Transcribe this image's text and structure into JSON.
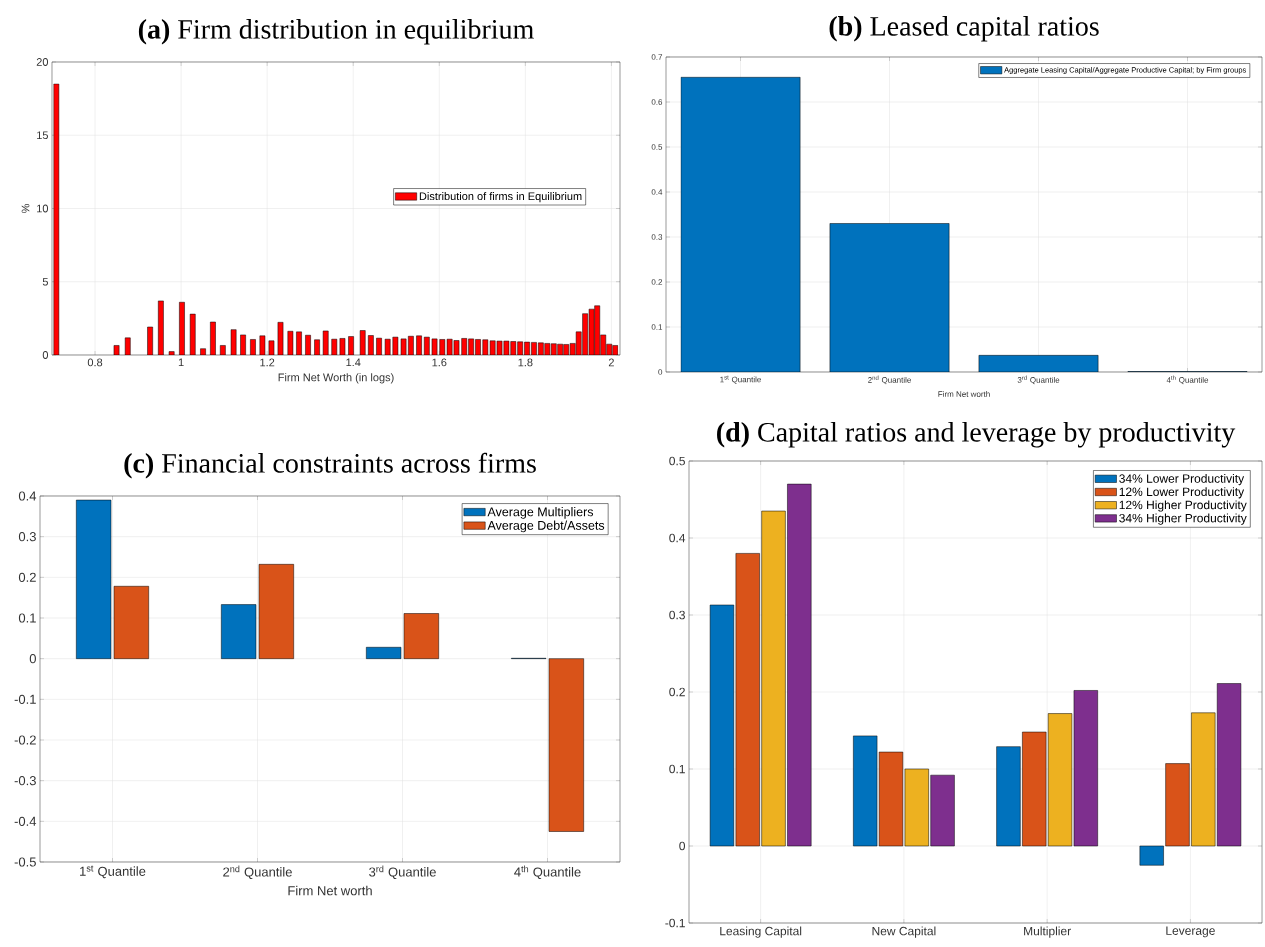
{
  "chart_data": [
    {
      "type": "bar",
      "title": "**(a)** Firm distribution in equilibrium",
      "xlabel": "Firm Net Worth (in logs)",
      "ylabel": "%",
      "x": [
        0.71,
        0.85,
        0.876,
        0.928,
        0.953,
        0.978,
        1.002,
        1.027,
        1.051,
        1.074,
        1.097,
        1.122,
        1.144,
        1.167,
        1.189,
        1.21,
        1.231,
        1.254,
        1.274,
        1.295,
        1.316,
        1.336,
        1.356,
        1.375,
        1.395,
        1.422,
        1.441,
        1.46,
        1.48,
        1.498,
        1.517,
        1.534,
        1.553,
        1.571,
        1.589,
        1.607,
        1.624,
        1.64,
        1.658,
        1.674,
        1.69,
        1.707,
        1.724,
        1.74,
        1.756,
        1.772,
        1.788,
        1.804,
        1.82,
        1.836,
        1.851,
        1.866,
        1.881,
        1.895,
        1.91,
        1.924,
        1.939,
        1.954,
        1.967,
        1.981,
        1.995,
        2.009
      ],
      "series": [
        {
          "name": "Distribution of firms in Equilibrium",
          "color": "#ff0000",
          "values": [
            18.5,
            0.65,
            1.17,
            1.91,
            3.69,
            0.23,
            3.6,
            2.79,
            0.43,
            2.25,
            0.65,
            1.73,
            1.37,
            1.06,
            1.31,
            0.97,
            2.23,
            1.62,
            1.58,
            1.35,
            1.04,
            1.64,
            1.08,
            1.13,
            1.26,
            1.67,
            1.33,
            1.15,
            1.08,
            1.22,
            1.1,
            1.28,
            1.31,
            1.22,
            1.1,
            1.06,
            1.08,
            0.99,
            1.13,
            1.1,
            1.06,
            1.04,
            0.97,
            0.95,
            0.95,
            0.92,
            0.9,
            0.88,
            0.86,
            0.83,
            0.79,
            0.77,
            0.74,
            0.72,
            0.79,
            1.58,
            2.82,
            3.13,
            3.36,
            1.37,
            0.74,
            0.65
          ]
        }
      ],
      "xlim": [
        0.7,
        2.02
      ],
      "xticks": [
        0.8,
        1,
        1.2,
        1.4,
        1.6,
        1.8,
        2
      ],
      "ylim": [
        0,
        20
      ],
      "yticks": [
        0,
        5,
        10,
        15,
        20
      ],
      "grid": true,
      "legend": "right"
    },
    {
      "type": "bar",
      "title": "**(b)** Leased capital ratios",
      "xlabel": "Firm Net worth",
      "categories": [
        "1$^{st}$ Quantile",
        "2$^{nd}$ Quantile",
        "3$^{rd}$ Quantile",
        "4$^{th}$ Quantile"
      ],
      "series": [
        {
          "name": "Aggregate Leasing Capital/Aggregate  Productive Capital; by Firm groups",
          "color": "#0072bd",
          "values": [
            0.655,
            0.33,
            0.037,
            0.001
          ]
        }
      ],
      "ylim": [
        0,
        0.7
      ],
      "yticks": [
        0,
        0.1,
        0.2,
        0.3,
        0.4,
        0.5,
        0.6,
        0.7
      ],
      "grid": true,
      "legend": "top right"
    },
    {
      "type": "bar",
      "title": "**(c)** Financial constraints across firms",
      "xlabel": "Firm Net worth",
      "categories": [
        "1$^{st}$ Quantile",
        "2$^{nd}$ Quantile",
        "3$^{rd}$ Quantile",
        "4$^{th}$ Quantile"
      ],
      "series": [
        {
          "name": "Average Multipliers",
          "color": "#0072bd",
          "values": [
            0.39,
            0.133,
            0.028,
            0.001
          ]
        },
        {
          "name": "Average Debt/Assets",
          "color": "#d95319",
          "values": [
            0.178,
            0.232,
            0.111,
            -0.425
          ]
        }
      ],
      "ylim": [
        -0.5,
        0.4
      ],
      "yticks": [
        -0.5,
        -0.4,
        -0.3,
        -0.2,
        -0.1,
        0,
        0.1,
        0.2,
        0.3,
        0.4
      ],
      "grid": true,
      "legend": "top right"
    },
    {
      "type": "bar",
      "title": "**(d)** Capital ratios and leverage by productivity",
      "categories": [
        "Leasing Capital",
        "New Capital",
        "Multiplier",
        "Leverage"
      ],
      "series": [
        {
          "name": "34% Lower Productivity",
          "color": "#0072bd",
          "values": [
            0.313,
            0.143,
            0.129,
            -0.025
          ]
        },
        {
          "name": "12% Lower Productivity",
          "color": "#d95319",
          "values": [
            0.38,
            0.122,
            0.148,
            0.107
          ]
        },
        {
          "name": "12% Higher Productivity",
          "color": "#edb120",
          "values": [
            0.435,
            0.1,
            0.172,
            0.173
          ]
        },
        {
          "name": "34% Higher Productivity",
          "color": "#7e2f8e",
          "values": [
            0.47,
            0.092,
            0.202,
            0.211
          ]
        }
      ],
      "ylim": [
        -0.1,
        0.5
      ],
      "yticks": [
        -0.1,
        0,
        0.1,
        0.2,
        0.3,
        0.4,
        0.5
      ],
      "grid": true,
      "legend": "top right"
    }
  ]
}
